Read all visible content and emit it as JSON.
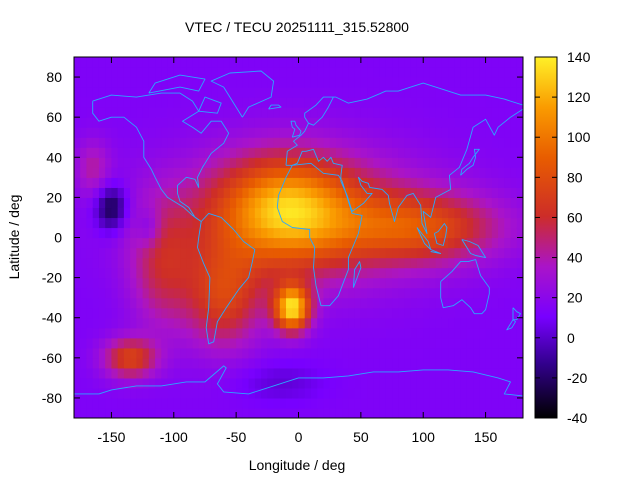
{
  "chart_data": {
    "type": "heatmap",
    "title": "VTEC / TECU 20251111_315.52800",
    "xlabel": "Longitude / deg",
    "ylabel": "Latitude / deg",
    "xlim": [
      -180,
      180
    ],
    "ylim": [
      -90,
      90
    ],
    "x_ticks": [
      -150,
      -100,
      -50,
      0,
      50,
      100,
      150
    ],
    "y_ticks": [
      -80,
      -60,
      -40,
      -20,
      0,
      20,
      40,
      60,
      80
    ],
    "colorbar": {
      "range": [
        -40,
        140
      ],
      "ticks": [
        -40,
        -20,
        0,
        20,
        40,
        60,
        80,
        100,
        120,
        140
      ],
      "palette": "gnuplot (black-purple-red-orange-yellow)"
    },
    "background_value": 14,
    "features": [
      {
        "name": "equatorial band",
        "lon": 0,
        "lat": 10,
        "value": 72
      },
      {
        "name": "south atlantic peak",
        "lon": -5,
        "lat": -35,
        "value": 130
      },
      {
        "name": "west africa max",
        "lon": -10,
        "lat": 15,
        "value": 78
      },
      {
        "name": "indian ocean band",
        "lon": 100,
        "lat": 5,
        "value": 68
      },
      {
        "name": "south america south",
        "lon": -60,
        "lat": -30,
        "value": 68
      },
      {
        "name": "south pacific patch",
        "lon": -135,
        "lat": -60,
        "value": 72
      },
      {
        "name": "pacific low",
        "lon": -150,
        "lat": 15,
        "value": -30
      },
      {
        "name": "pacific low 2",
        "lon": -120,
        "lat": 5,
        "value": -8
      },
      {
        "name": "east pacific arc",
        "lon": -110,
        "lat": -15,
        "value": 50
      },
      {
        "name": "pacific north patch",
        "lon": -165,
        "lat": 35,
        "value": 40
      },
      {
        "name": "antarctic low",
        "lon": -15,
        "lat": -72,
        "value": 2
      }
    ],
    "overlay": "world coastlines"
  },
  "colors": {
    "coastline": "#2aa8ff",
    "frame": "#000000"
  }
}
